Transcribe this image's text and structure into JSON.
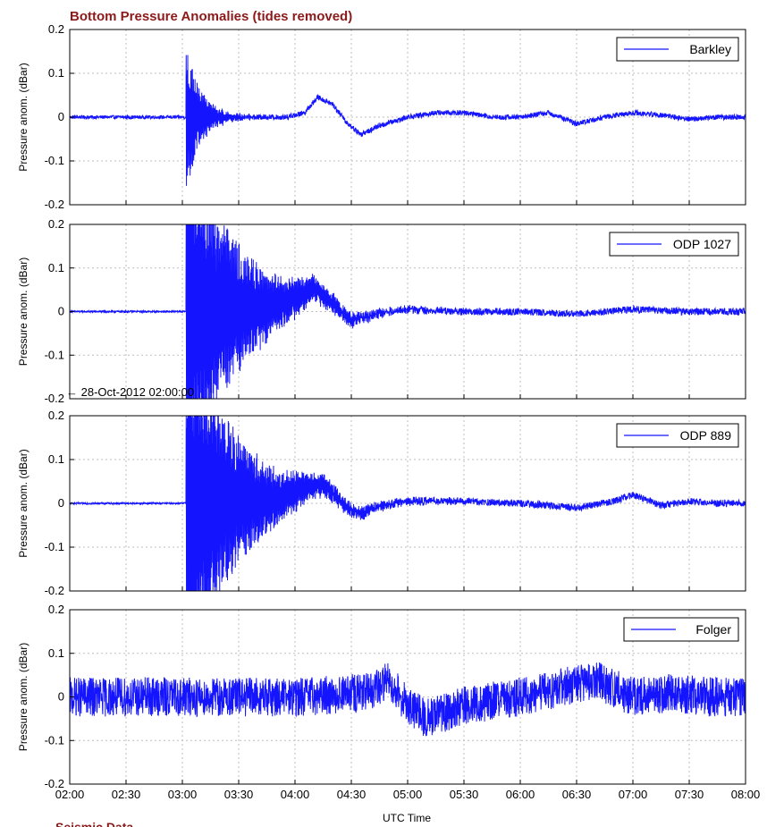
{
  "figure": {
    "title": "Bottom Pressure Anomalies (tides removed)",
    "footer_title": "Seismic Data",
    "colors": {
      "series": "#1414ff",
      "title": "#8b1a1a",
      "grid": "#bdbdbd",
      "background": "#ffffff"
    }
  },
  "chart_data": [
    {
      "type": "line",
      "title": "",
      "ylabel": "Pressure anom. (dBar)",
      "xlabel": "",
      "ylim": [
        -0.2,
        0.2
      ],
      "xlim": [
        "02:00",
        "08:00"
      ],
      "grid": true,
      "legend": {
        "placement": "top-right",
        "entries": [
          "Barkley"
        ]
      },
      "yticks": [
        "0.2",
        "0.1",
        "0",
        "-0.1",
        "-0.2"
      ],
      "xticks": [
        "02:00",
        "02:30",
        "03:00",
        "03:30",
        "04:00",
        "04:30",
        "05:00",
        "05:30",
        "06:00",
        "06:30",
        "07:00",
        "07:30",
        "08:00"
      ],
      "series": [
        {
          "name": "Barkley",
          "noise": {
            "pre": 0.004,
            "after": 0.006
          },
          "events": [
            {
              "type": "burst",
              "start": "03:02",
              "amp": 0.17,
              "decay_min": 8
            }
          ],
          "x": [
            "02:00",
            "03:00",
            "03:55",
            "04:05",
            "04:12",
            "04:20",
            "04:27",
            "04:35",
            "04:45",
            "05:00",
            "05:15",
            "05:30",
            "05:45",
            "06:00",
            "06:15",
            "06:30",
            "06:45",
            "07:00",
            "07:15",
            "07:30",
            "07:45",
            "08:00"
          ],
          "values": [
            0.0,
            0.0,
            0.0,
            0.01,
            0.045,
            0.03,
            -0.01,
            -0.04,
            -0.02,
            0.0,
            0.01,
            0.01,
            0.0,
            0.0,
            0.01,
            -0.015,
            0.0,
            0.01,
            0.005,
            -0.005,
            0.0,
            0.0
          ]
        }
      ]
    },
    {
      "type": "line",
      "title": "",
      "ylabel": "Pressure anom. (dBar)",
      "xlabel": "",
      "ylim": [
        -0.2,
        0.2
      ],
      "xlim": [
        "02:00",
        "08:00"
      ],
      "grid": true,
      "legend": {
        "placement": "top-right",
        "entries": [
          "ODP 1027"
        ]
      },
      "annotation": {
        "text": "← 28-Oct-2012 02:00:00",
        "placement": "bottom-left"
      },
      "yticks": [
        "0.2",
        "0.1",
        "0",
        "-0.1",
        "-0.2"
      ],
      "xticks": [
        "02:00",
        "02:30",
        "03:00",
        "03:30",
        "04:00",
        "04:30",
        "05:00",
        "05:30",
        "06:00",
        "06:30",
        "07:00",
        "07:30",
        "08:00"
      ],
      "series": [
        {
          "name": "ODP 1027",
          "noise": {
            "pre": 0.002,
            "after": 0.008
          },
          "events": [
            {
              "type": "burst",
              "start": "03:02",
              "amp": 0.45,
              "decay_min": 25
            }
          ],
          "x": [
            "02:00",
            "03:00",
            "03:45",
            "04:00",
            "04:10",
            "04:20",
            "04:30",
            "04:45",
            "05:00",
            "05:30",
            "06:00",
            "06:30",
            "07:00",
            "07:30",
            "08:00"
          ],
          "values": [
            0.0,
            0.0,
            0.01,
            0.03,
            0.055,
            0.02,
            -0.02,
            -0.005,
            0.005,
            0.0,
            0.0,
            -0.005,
            0.005,
            0.0,
            0.0
          ]
        }
      ]
    },
    {
      "type": "line",
      "title": "",
      "ylabel": "Pressure anom. (dBar)",
      "xlabel": "",
      "ylim": [
        -0.2,
        0.2
      ],
      "xlim": [
        "02:00",
        "08:00"
      ],
      "grid": true,
      "legend": {
        "placement": "top-right",
        "entries": [
          "ODP 889"
        ]
      },
      "yticks": [
        "0.2",
        "0.1",
        "0",
        "-0.1",
        "-0.2"
      ],
      "xticks": [
        "02:00",
        "02:30",
        "03:00",
        "03:30",
        "04:00",
        "04:30",
        "05:00",
        "05:30",
        "06:00",
        "06:30",
        "07:00",
        "07:30",
        "08:00"
      ],
      "series": [
        {
          "name": "ODP 889",
          "noise": {
            "pre": 0.002,
            "after": 0.008
          },
          "events": [
            {
              "type": "burst",
              "start": "03:02",
              "amp": 0.45,
              "decay_min": 25
            }
          ],
          "x": [
            "02:00",
            "03:00",
            "03:50",
            "04:05",
            "04:15",
            "04:25",
            "04:35",
            "04:45",
            "05:00",
            "05:30",
            "06:00",
            "06:30",
            "06:50",
            "07:00",
            "07:15",
            "07:30",
            "07:45",
            "08:00"
          ],
          "values": [
            0.0,
            0.0,
            0.01,
            0.035,
            0.045,
            0.0,
            -0.025,
            -0.005,
            0.005,
            0.005,
            0.0,
            -0.01,
            0.005,
            0.02,
            -0.005,
            0.005,
            0.0,
            0.0
          ]
        }
      ]
    },
    {
      "type": "line",
      "title": "",
      "ylabel": "Pressure anom. (dBar)",
      "xlabel": "UTC Time",
      "ylim": [
        -0.2,
        0.2
      ],
      "xlim": [
        "02:00",
        "08:00"
      ],
      "grid": true,
      "legend": {
        "placement": "top-right",
        "entries": [
          "Folger"
        ]
      },
      "yticks": [
        "0.2",
        "0.1",
        "0",
        "-0.1",
        "-0.2"
      ],
      "xticks": [
        "02:00",
        "02:30",
        "03:00",
        "03:30",
        "04:00",
        "04:30",
        "05:00",
        "05:30",
        "06:00",
        "06:30",
        "07:00",
        "07:30",
        "08:00"
      ],
      "series": [
        {
          "name": "Folger",
          "noise": {
            "pre": 0.045,
            "after": 0.045
          },
          "events": [],
          "x": [
            "02:00",
            "03:00",
            "04:00",
            "04:40",
            "04:50",
            "05:00",
            "05:10",
            "05:30",
            "06:00",
            "06:20",
            "06:40",
            "07:00",
            "07:20",
            "07:40",
            "08:00"
          ],
          "values": [
            0.0,
            0.0,
            0.0,
            0.01,
            0.04,
            -0.02,
            -0.05,
            -0.02,
            0.0,
            0.02,
            0.04,
            0.0,
            0.01,
            0.0,
            0.0
          ]
        }
      ]
    }
  ]
}
